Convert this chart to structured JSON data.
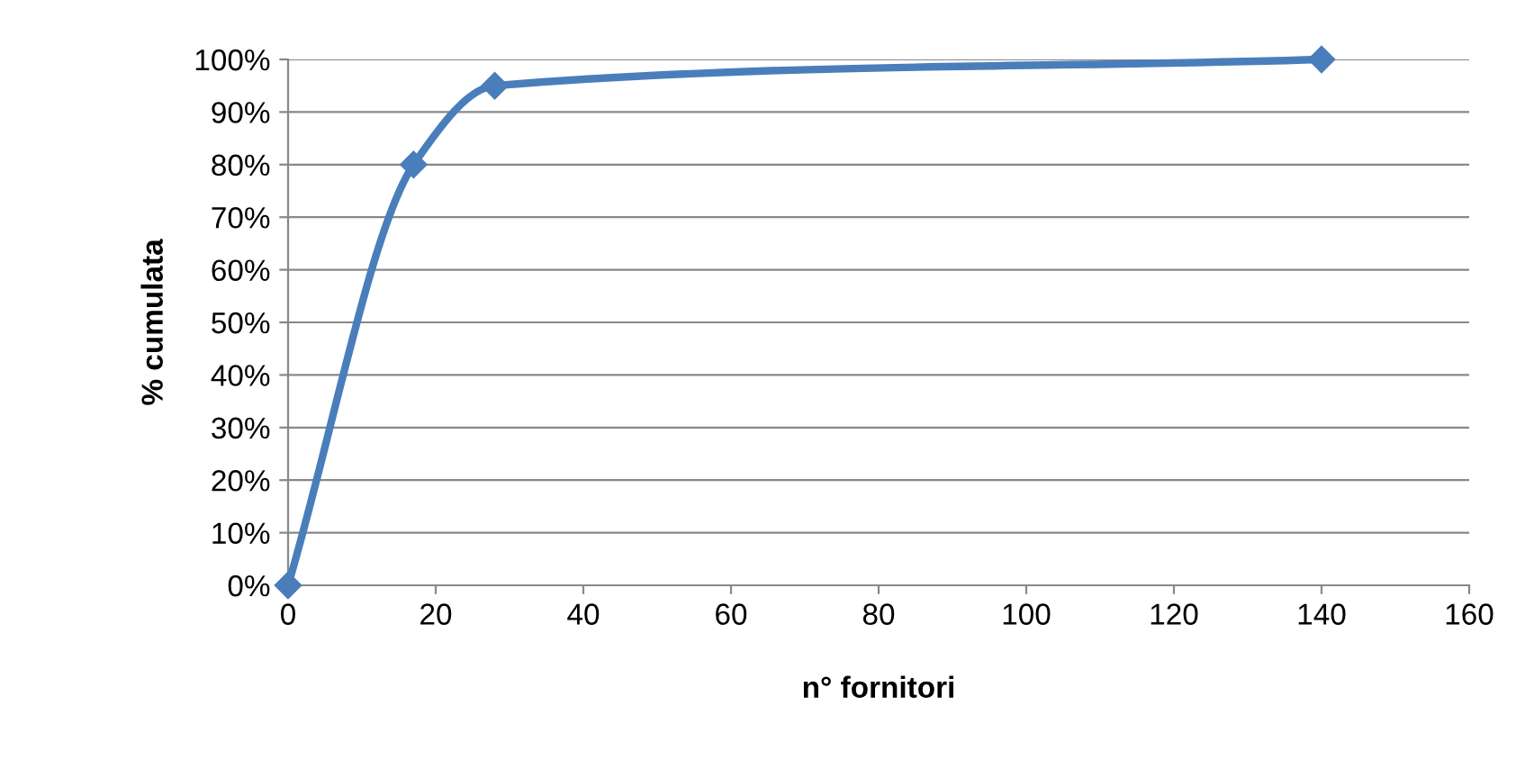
{
  "chart_data": {
    "type": "line",
    "xlabel": "n° fornitori",
    "ylabel": "% cumulata",
    "series": [
      {
        "color": "#4a7ebb",
        "x": [
          0,
          17,
          28,
          140
        ],
        "values": [
          0,
          80,
          95,
          100
        ]
      }
    ],
    "xlim": [
      0,
      160
    ],
    "xticks": [
      0,
      20,
      40,
      60,
      80,
      100,
      120,
      140,
      160
    ],
    "ylim": [
      0,
      100
    ],
    "yticks": [
      {
        "value": 0,
        "label": "0%"
      },
      {
        "value": 10,
        "label": "10%"
      },
      {
        "value": 20,
        "label": "20%"
      },
      {
        "value": 30,
        "label": "30%"
      },
      {
        "value": 40,
        "label": "40%"
      },
      {
        "value": 50,
        "label": "50%"
      },
      {
        "value": 60,
        "label": "60%"
      },
      {
        "value": 70,
        "label": "70%"
      },
      {
        "value": 80,
        "label": "80%"
      },
      {
        "value": 90,
        "label": "90%"
      },
      {
        "value": 100,
        "label": "100%"
      }
    ],
    "grid": "y",
    "marker": "diamond",
    "line_style": "solid",
    "legend": false
  }
}
